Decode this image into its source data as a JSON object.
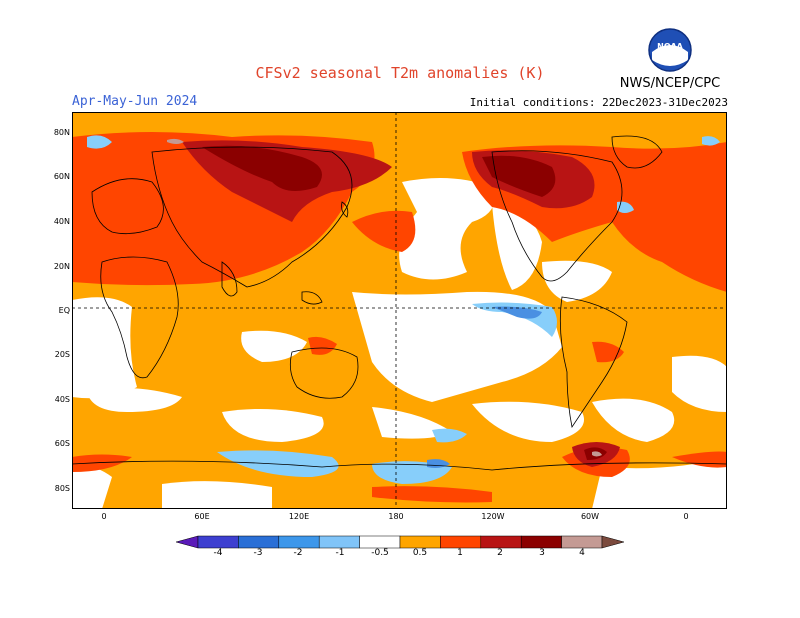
{
  "header": {
    "title": "CFSv2 seasonal T2m anomalies (K)",
    "season": "Apr-May-Jun 2024",
    "agency": "NWS/NCEP/CPC",
    "initial_conditions": "Initial conditions: 22Dec2023-31Dec2023",
    "logo_text": "NOAA"
  },
  "map": {
    "lat_labels": [
      "80N",
      "60N",
      "40N",
      "20N",
      "EQ",
      "20S",
      "40S",
      "60S",
      "80S"
    ],
    "lon_labels": [
      "0",
      "60E",
      "120E",
      "180",
      "120W",
      "60W",
      "0"
    ],
    "colors": {
      "neutral": "#ffffff",
      "warm_05": "#ffa500",
      "warm_1": "#ff4500",
      "warm_2": "#b22222",
      "warm_3": "#8b0000",
      "warm_4": "#bc8f8f",
      "cool_05": "#87cefa",
      "cool_1": "#4a90e2",
      "coast": "#000000"
    }
  },
  "colorbar": {
    "labels": [
      "-4",
      "-3",
      "-2",
      "-1",
      "-0.5",
      "0.5",
      "1",
      "2",
      "3",
      "4"
    ],
    "colors": [
      "#5a1ab8",
      "#3d3fd0",
      "#2a6fd6",
      "#3d97ea",
      "#80c4f8",
      "#ffffff",
      "#ffa500",
      "#ff4500",
      "#b81414",
      "#8b0000",
      "#c49a94",
      "#7b4a3d"
    ]
  }
}
